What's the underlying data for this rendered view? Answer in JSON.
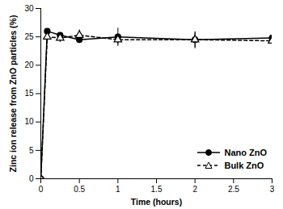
{
  "chart_data": {
    "type": "line",
    "x_label": "Time (hours)",
    "y_label": "Zinc ion release from ZnO particles (%)",
    "x": [
      0,
      0.083,
      0.25,
      0.5,
      1,
      2,
      3
    ],
    "series": [
      {
        "name": "Nano ZnO",
        "color": "#000000",
        "marker": "filled_circle",
        "line_style": "solid",
        "values": [
          0,
          26,
          25.3,
          24.5,
          25,
          24.5,
          24.8
        ],
        "errors": [
          0,
          0.3,
          0.5,
          0.4,
          1.6,
          1.5,
          0.6
        ]
      },
      {
        "name": "Bulk ZnO",
        "color": "#000000",
        "marker": "open_triangle",
        "line_style": "dashed",
        "values": [
          0,
          25,
          24.8,
          25.3,
          24.5,
          24.5,
          24.3
        ],
        "errors": [
          0,
          0.8,
          0.7,
          1.0,
          0.8,
          1.3,
          0.8
        ]
      }
    ],
    "xlim": [
      0,
      3
    ],
    "xticks": [
      0,
      0.5,
      1,
      1.5,
      2,
      2.5,
      3
    ],
    "ylim": [
      0,
      30
    ],
    "yticks": [
      0,
      5,
      10,
      15,
      20,
      25,
      30
    ],
    "grid": false,
    "legend": "lower right"
  }
}
